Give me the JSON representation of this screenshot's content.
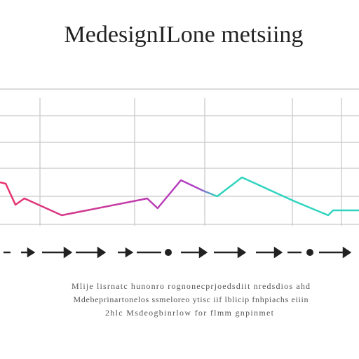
{
  "chart_data": {
    "type": "line",
    "title": "MedesignILone metsiing",
    "x": [
      0,
      1.6,
      4.3,
      6.8,
      17.2,
      39.1,
      41,
      43.9,
      50.4,
      56.6,
      60.5,
      67.4,
      82,
      91.4,
      92.8,
      100
    ],
    "series": [
      {
        "colors": [
          "#e8336b",
          "#b040c8",
          "#30d4c0"
        ],
        "values": [
          32.5,
          31.5,
          16.5,
          21,
          9,
          20,
          21,
          14,
          34,
          26.5,
          22.5,
          36,
          19,
          9,
          12.5,
          12.5
        ]
      }
    ],
    "xlim": [
      0,
      100
    ],
    "ylim": [
      0,
      100
    ],
    "caption": [
      "Mlije lisrnatc hunonro rognonecprjoedsdiit nredsdios ahd",
      "Mdebeprinartonelos ssmeloreo ytisc iif lblicip fnhpiachs eiiin",
      "2hlc Msdeogbinrlow for flmm gnpinmet"
    ]
  }
}
